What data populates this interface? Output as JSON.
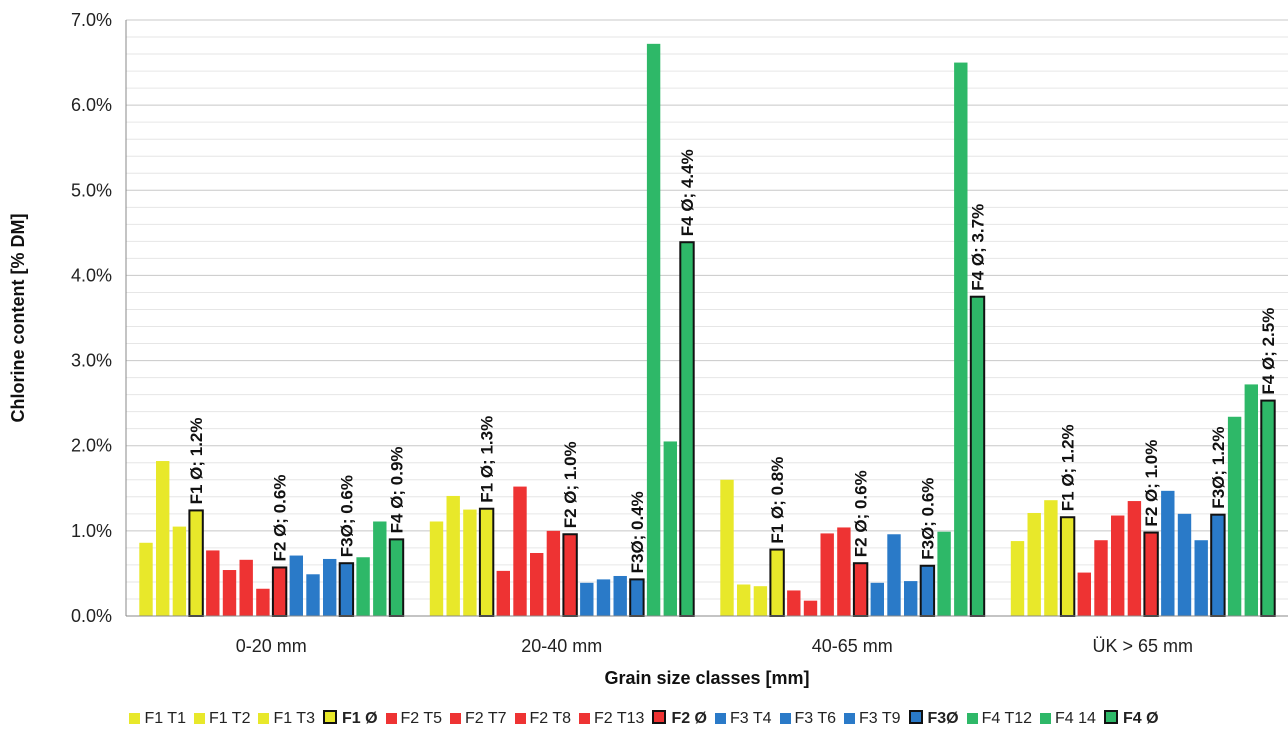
{
  "chart_data": {
    "type": "bar",
    "xlabel": "Grain size classes [mm]",
    "ylabel": "Chlorine content [% DM]",
    "ylim": [
      0,
      7.0
    ],
    "yticks": [
      "0.0%",
      "1.0%",
      "2.0%",
      "3.0%",
      "4.0%",
      "5.0%",
      "6.0%",
      "7.0%"
    ],
    "grid": true,
    "legend_position": "bottom",
    "categories": [
      "0-20 mm",
      "20-40 mm",
      "40-65 mm",
      "ÜK > 65 mm"
    ],
    "series": [
      {
        "name": "F1 T1",
        "color": "#e8e82a",
        "average": false,
        "values": [
          0.86,
          1.11,
          1.6,
          0.88
        ]
      },
      {
        "name": "F1 T2",
        "color": "#e8e82a",
        "average": false,
        "values": [
          1.82,
          1.41,
          0.37,
          1.21
        ]
      },
      {
        "name": "F1 T3",
        "color": "#e8e82a",
        "average": false,
        "values": [
          1.05,
          1.25,
          0.35,
          1.36
        ]
      },
      {
        "name": "F1 Ø",
        "color": "#e8e82a",
        "average": true,
        "values": [
          1.24,
          1.26,
          0.78,
          1.16
        ],
        "labels": [
          "F1 Ø; 1.2%",
          "F1 Ø; 1.3%",
          "F1 Ø; 0.8%",
          "F1 Ø; 1.2%"
        ]
      },
      {
        "name": "F2  T5",
        "color": "#ee3333",
        "average": false,
        "values": [
          0.77,
          0.53,
          0.3,
          0.51
        ]
      },
      {
        "name": "F2  T7",
        "color": "#ee3333",
        "average": false,
        "values": [
          0.54,
          1.52,
          0.18,
          0.89
        ]
      },
      {
        "name": "F2  T8",
        "color": "#ee3333",
        "average": false,
        "values": [
          0.66,
          0.74,
          0.97,
          1.18
        ]
      },
      {
        "name": "F2  T13",
        "color": "#ee3333",
        "average": false,
        "values": [
          0.32,
          1.0,
          1.04,
          1.35
        ]
      },
      {
        "name": "F2 Ø",
        "color": "#ee3333",
        "average": true,
        "values": [
          0.57,
          0.96,
          0.62,
          0.98
        ],
        "labels": [
          "F2 Ø; 0.6%",
          "F2 Ø; 1.0%",
          "F2 Ø; 0.6%",
          "F2 Ø; 1.0%"
        ]
      },
      {
        "name": "F3 T4",
        "color": "#2a7ac8",
        "average": false,
        "values": [
          0.71,
          0.39,
          0.39,
          1.47
        ]
      },
      {
        "name": "F3 T6",
        "color": "#2a7ac8",
        "average": false,
        "values": [
          0.49,
          0.43,
          0.96,
          1.2
        ]
      },
      {
        "name": "F3 T9",
        "color": "#2a7ac8",
        "average": false,
        "values": [
          0.67,
          0.47,
          0.41,
          0.89
        ]
      },
      {
        "name": "F3Ø",
        "color": "#2a7ac8",
        "average": true,
        "values": [
          0.62,
          0.43,
          0.59,
          1.19
        ],
        "labels": [
          "F3Ø; 0.6%",
          "F3Ø; 0.4%",
          "F3Ø; 0.6%",
          "F3Ø; 1.2%"
        ]
      },
      {
        "name": "F4 T12",
        "color": "#2eb868",
        "average": false,
        "values": [
          0.69,
          6.72,
          0.99,
          2.34
        ]
      },
      {
        "name": "F4 14",
        "color": "#2eb868",
        "average": false,
        "values": [
          1.11,
          2.05,
          6.5,
          2.72
        ]
      },
      {
        "name": "F4 Ø",
        "color": "#2eb868",
        "average": true,
        "values": [
          0.9,
          4.39,
          3.75,
          2.53
        ],
        "labels": [
          "F4 Ø; 0.9%",
          "F4 Ø; 4.4%",
          "F4 Ø; 3.7%",
          "F4 Ø; 2.5%"
        ]
      }
    ]
  }
}
